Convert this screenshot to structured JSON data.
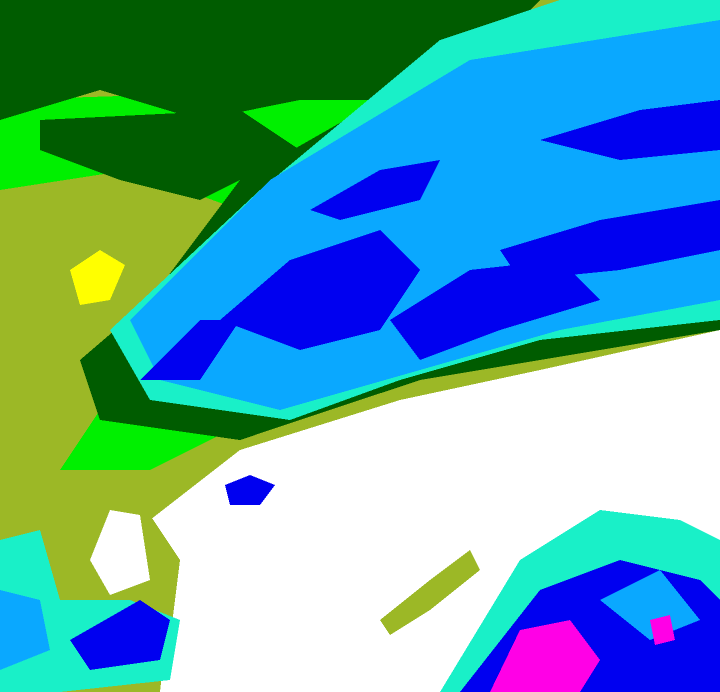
{
  "image": {
    "kind": "false-color radar/satellite intensity map",
    "palette": {
      "dark_green": "#005c00",
      "bright_green": "#00f000",
      "olive": "#9cb826",
      "yellow": "#ffff00",
      "cyan": "#19f0c8",
      "light_blue": "#0aa8ff",
      "blue": "#0000f0",
      "magenta": "#ff00e6",
      "white": "#ffffff"
    }
  }
}
